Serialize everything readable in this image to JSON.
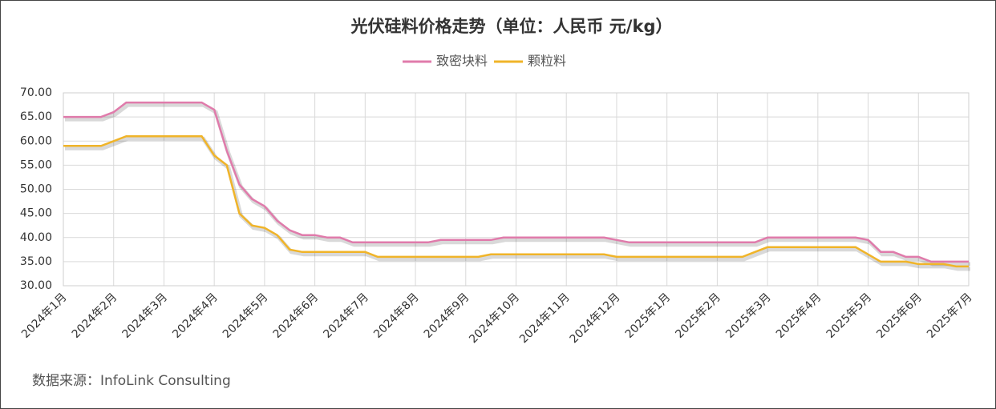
{
  "chart_data": {
    "type": "line",
    "title": "光伏硅料价格走势（单位：人民币 元/kg）",
    "source": "数据来源：InfoLink Consulting",
    "categories": [
      "2024年1月",
      null,
      null,
      null,
      "2024年2月",
      null,
      null,
      null,
      "2024年3月",
      null,
      null,
      null,
      "2024年4月",
      null,
      null,
      null,
      "2024年5月",
      null,
      null,
      null,
      "2024年6月",
      null,
      null,
      null,
      "2024年7月",
      null,
      null,
      null,
      "2024年8月",
      null,
      null,
      null,
      "2024年9月",
      null,
      null,
      null,
      "2024年10月",
      null,
      null,
      null,
      "2024年11月",
      null,
      null,
      null,
      "2024年12月",
      null,
      null,
      null,
      "2025年1月",
      null,
      null,
      null,
      "2025年2月",
      null,
      null,
      null,
      "2025年3月",
      null,
      null,
      null,
      "2025年4月",
      null,
      null,
      null,
      "2025年5月",
      null,
      null,
      null,
      "2025年6月",
      null,
      null,
      null,
      "2025年7月"
    ],
    "series": [
      {
        "name": "致密块料",
        "color": "#e07bab",
        "values": [
          65,
          65,
          65,
          65,
          66,
          68,
          68,
          68,
          68,
          68,
          68,
          68,
          66.5,
          58,
          51,
          48,
          46.5,
          43.5,
          41.5,
          40.5,
          40.5,
          40,
          40,
          39,
          39,
          39,
          39,
          39,
          39,
          39,
          39.5,
          39.5,
          39.5,
          39.5,
          39.5,
          40,
          40,
          40,
          40,
          40,
          40,
          40,
          40,
          40,
          39.5,
          39,
          39,
          39,
          39,
          39,
          39,
          39,
          39,
          39,
          39,
          39,
          40,
          40,
          40,
          40,
          40,
          40,
          40,
          40,
          39.5,
          37,
          37,
          36,
          36,
          35,
          35,
          35,
          35
        ]
      },
      {
        "name": "颗粒料",
        "color": "#f0b429",
        "values": [
          59,
          59,
          59,
          59,
          60,
          61,
          61,
          61,
          61,
          61,
          61,
          61,
          57,
          55,
          45,
          42.5,
          42,
          40.5,
          37.5,
          37,
          37,
          37,
          37,
          37,
          37,
          36,
          36,
          36,
          36,
          36,
          36,
          36,
          36,
          36,
          36.5,
          36.5,
          36.5,
          36.5,
          36.5,
          36.5,
          36.5,
          36.5,
          36.5,
          36.5,
          36,
          36,
          36,
          36,
          36,
          36,
          36,
          36,
          36,
          36,
          36,
          37,
          38,
          38,
          38,
          38,
          38,
          38,
          38,
          38,
          36.5,
          35,
          35,
          35,
          34.5,
          34.5,
          34.5,
          34,
          34
        ]
      }
    ],
    "ylim": [
      30,
      70
    ],
    "yticks": [
      {
        "value": 30,
        "label": "30.00"
      },
      {
        "value": 35,
        "label": "35.00"
      },
      {
        "value": 40,
        "label": "40.00"
      },
      {
        "value": 45,
        "label": "45.00"
      },
      {
        "value": 50,
        "label": "50.00"
      },
      {
        "value": 55,
        "label": "55.00"
      },
      {
        "value": 60,
        "label": "60.00"
      },
      {
        "value": 65,
        "label": "65.00"
      },
      {
        "value": 70,
        "label": "70.00"
      }
    ],
    "grid": true
  }
}
